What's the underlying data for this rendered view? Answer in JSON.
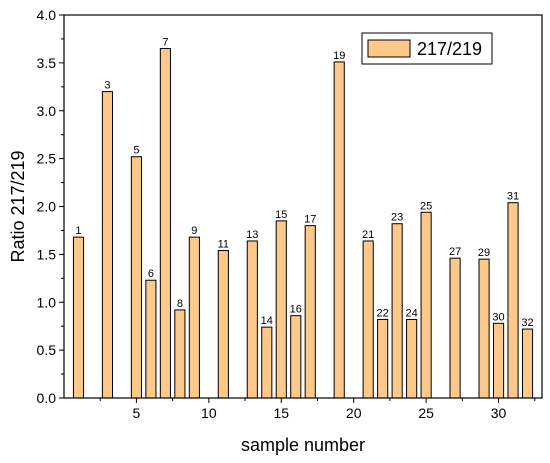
{
  "chart_data": {
    "type": "bar",
    "title": "",
    "xlabel": "sample number",
    "ylabel": "Ratio 217/219",
    "xlim": [
      0,
      33
    ],
    "ylim": [
      0,
      4.0
    ],
    "x_ticks": [
      5,
      10,
      15,
      20,
      25,
      30
    ],
    "y_ticks": [
      "0.0",
      "0.5",
      "1.0",
      "1.5",
      "2.0",
      "2.5",
      "3.0",
      "3.5",
      "4.0"
    ],
    "grid": false,
    "legend_position": "top-right",
    "bar_color": "#fdc98a",
    "bar_edge_color": "#000000",
    "series": [
      {
        "name": "217/219",
        "points": [
          {
            "x": 1,
            "y": 1.68,
            "label": "1"
          },
          {
            "x": 3,
            "y": 3.2,
            "label": "3"
          },
          {
            "x": 5,
            "y": 2.52,
            "label": "5"
          },
          {
            "x": 6,
            "y": 1.23,
            "label": "6"
          },
          {
            "x": 7,
            "y": 3.65,
            "label": "7"
          },
          {
            "x": 8,
            "y": 0.92,
            "label": "8"
          },
          {
            "x": 9,
            "y": 1.68,
            "label": "9"
          },
          {
            "x": 11,
            "y": 1.54,
            "label": "11"
          },
          {
            "x": 13,
            "y": 1.64,
            "label": "13"
          },
          {
            "x": 14,
            "y": 0.74,
            "label": "14"
          },
          {
            "x": 15,
            "y": 1.85,
            "label": "15"
          },
          {
            "x": 16,
            "y": 0.86,
            "label": "16"
          },
          {
            "x": 17,
            "y": 1.8,
            "label": "17"
          },
          {
            "x": 19,
            "y": 3.51,
            "label": "19"
          },
          {
            "x": 21,
            "y": 1.64,
            "label": "21"
          },
          {
            "x": 22,
            "y": 0.82,
            "label": "22"
          },
          {
            "x": 23,
            "y": 1.82,
            "label": "23"
          },
          {
            "x": 24,
            "y": 0.82,
            "label": "24"
          },
          {
            "x": 25,
            "y": 1.94,
            "label": "25"
          },
          {
            "x": 27,
            "y": 1.46,
            "label": "27"
          },
          {
            "x": 29,
            "y": 1.45,
            "label": "29"
          },
          {
            "x": 30,
            "y": 0.78,
            "label": "30"
          },
          {
            "x": 31,
            "y": 2.04,
            "label": "31"
          },
          {
            "x": 32,
            "y": 0.72,
            "label": "32"
          }
        ]
      }
    ]
  }
}
